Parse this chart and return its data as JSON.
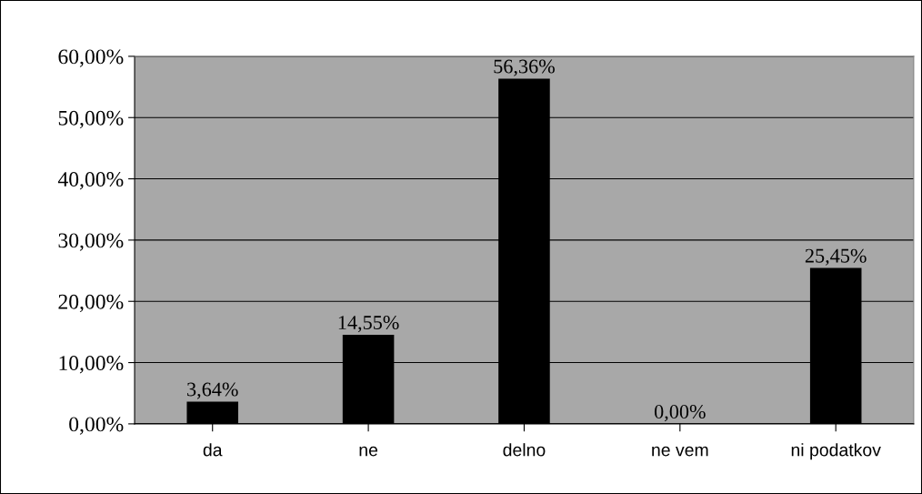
{
  "chart_data": {
    "type": "bar",
    "categories": [
      "da",
      "ne",
      "delno",
      "ne vem",
      "ni podatkov"
    ],
    "values": [
      3.64,
      14.55,
      56.36,
      0.0,
      25.45
    ],
    "color": "#000000",
    "value_labels": [
      "3,64%",
      "14,55%",
      "56,36%",
      "0,00%",
      "25,45%"
    ],
    "ylim": [
      0,
      60
    ],
    "yticks": [
      {
        "value": 0,
        "label": "0,00%"
      },
      {
        "value": 10,
        "label": "10,00%"
      },
      {
        "value": 20,
        "label": "20,00%"
      },
      {
        "value": 30,
        "label": "30,00%"
      },
      {
        "value": 40,
        "label": "40,00%"
      },
      {
        "value": 50,
        "label": "50,00%"
      },
      {
        "value": 60,
        "label": "60,00%"
      }
    ],
    "grid": "y",
    "legend": false
  }
}
